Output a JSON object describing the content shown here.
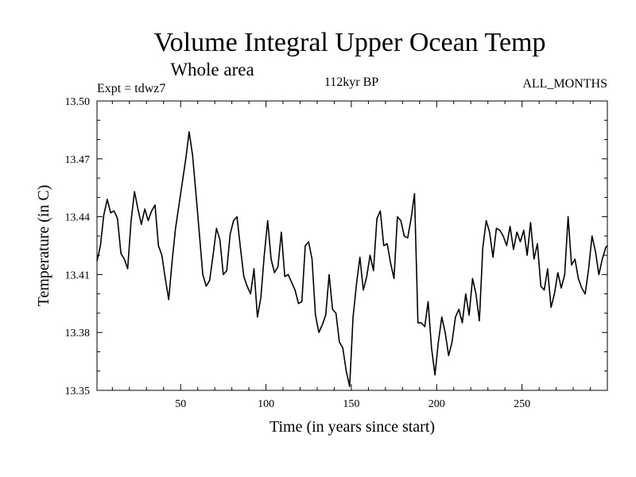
{
  "chart_data": {
    "type": "line",
    "title": "Volume Integral Upper Ocean Temp",
    "subtitle": "Whole area",
    "expt_label": "Expt = tdwz7",
    "period_label": "112kyr BP",
    "months_label": "ALL_MONTHS",
    "xlabel": "Time (in years since start)",
    "ylabel": "Temperature (in C)",
    "xlim": [
      1,
      300
    ],
    "ylim": [
      13.35,
      13.5
    ],
    "xticks": [
      50,
      100,
      150,
      200,
      250
    ],
    "yticks": [
      "13.35",
      "13.38",
      "13.41",
      "13.44",
      "13.47",
      "13.50"
    ],
    "grid": false,
    "series": [
      {
        "color": "#000000",
        "x": [
          1,
          3,
          5,
          7,
          9,
          11,
          13,
          15,
          17,
          19,
          21,
          23,
          25,
          27,
          29,
          31,
          33,
          35,
          37,
          39,
          41,
          43,
          45,
          47,
          49,
          51,
          53,
          55,
          57,
          59,
          61,
          63,
          65,
          67,
          69,
          71,
          73,
          75,
          77,
          79,
          81,
          83,
          85,
          87,
          89,
          91,
          93,
          95,
          97,
          99,
          101,
          103,
          105,
          107,
          109,
          111,
          113,
          115,
          117,
          119,
          121,
          123,
          125,
          127,
          129,
          131,
          133,
          135,
          137,
          139,
          141,
          143,
          145,
          147,
          149,
          151,
          153,
          155,
          157,
          159,
          161,
          163,
          165,
          167,
          169,
          171,
          173,
          175,
          177,
          179,
          181,
          183,
          185,
          187,
          189,
          191,
          193,
          195,
          197,
          199,
          201,
          203,
          205,
          207,
          209,
          211,
          213,
          215,
          217,
          219,
          221,
          223,
          225,
          227,
          229,
          231,
          233,
          235,
          237,
          239,
          241,
          243,
          245,
          247,
          249,
          251,
          253,
          255,
          257,
          259,
          261,
          263,
          265,
          267,
          269,
          271,
          273,
          275,
          277,
          279,
          281,
          283,
          285,
          287,
          289,
          291,
          293,
          295,
          297,
          299,
          300
        ],
        "values": [
          13.417,
          13.425,
          13.441,
          13.449,
          13.442,
          13.443,
          13.439,
          13.421,
          13.418,
          13.413,
          13.438,
          13.453,
          13.444,
          13.436,
          13.444,
          13.438,
          13.443,
          13.446,
          13.425,
          13.42,
          13.408,
          13.397,
          13.417,
          13.434,
          13.446,
          13.458,
          13.47,
          13.484,
          13.472,
          13.452,
          13.431,
          13.41,
          13.404,
          13.407,
          13.42,
          13.434,
          13.428,
          13.41,
          13.412,
          13.431,
          13.438,
          13.44,
          13.424,
          13.409,
          13.404,
          13.4,
          13.413,
          13.388,
          13.398,
          13.42,
          13.438,
          13.418,
          13.411,
          13.414,
          13.432,
          13.409,
          13.41,
          13.406,
          13.402,
          13.395,
          13.396,
          13.425,
          13.427,
          13.418,
          13.389,
          13.38,
          13.384,
          13.389,
          13.41,
          13.392,
          13.39,
          13.375,
          13.372,
          13.36,
          13.352,
          13.388,
          13.405,
          13.419,
          13.402,
          13.409,
          13.42,
          13.412,
          13.439,
          13.443,
          13.425,
          13.426,
          13.416,
          13.408,
          13.44,
          13.438,
          13.43,
          13.429,
          13.439,
          13.452,
          13.385,
          13.385,
          13.383,
          13.396,
          13.372,
          13.358,
          13.375,
          13.388,
          13.38,
          13.368,
          13.375,
          13.388,
          13.392,
          13.385,
          13.4,
          13.389,
          13.408,
          13.4,
          13.386,
          13.424,
          13.438,
          13.432,
          13.419,
          13.434,
          13.433,
          13.43,
          13.425,
          13.435,
          13.423,
          13.432,
          13.427,
          13.433,
          13.42,
          13.437,
          13.418,
          13.426,
          13.404,
          13.402,
          13.413,
          13.393,
          13.4,
          13.411,
          13.403,
          13.41,
          13.44,
          13.415,
          13.418,
          13.408,
          13.403,
          13.4,
          13.413,
          13.43,
          13.422,
          13.41,
          13.418,
          13.424,
          13.425
        ]
      }
    ]
  }
}
